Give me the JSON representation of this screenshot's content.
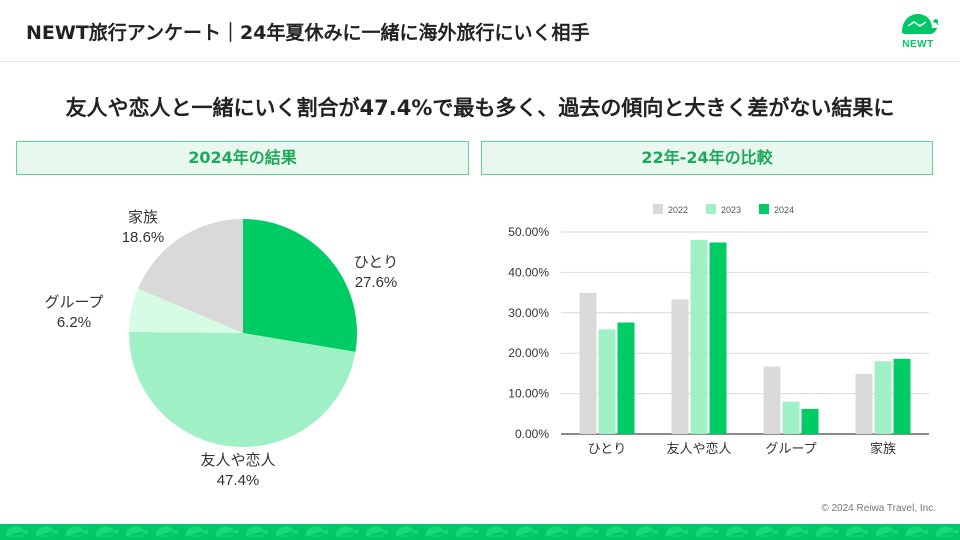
{
  "header": {
    "title": "NEWT旅行アンケート｜24年夏休みに一緒に海外旅行にいく相手",
    "logo_text": "NEWT"
  },
  "headline": "友人や恋人と一緒にいく割合が47.4%で最も多く、過去の傾向と大きく差がない結果に",
  "panels": {
    "left_title": "2024年の結果",
    "right_title": "22年-24年の比較"
  },
  "copyright": "© 2024 Reiwa Travel, Inc.",
  "colors": {
    "brand": "#00c767",
    "c2022": "#d9d9d9",
    "c2023": "#9ff0c4",
    "c2024": "#00cc66",
    "pie_hitori": "#00cc66",
    "pie_yujin": "#9ff0c4",
    "pie_group": "#d6fce6",
    "pie_kazoku": "#d9d9d9"
  },
  "chart_data": [
    {
      "type": "pie",
      "title": "",
      "slices": [
        {
          "label": "ひとり",
          "value": 27.6,
          "display": "27.6%",
          "color": "#00cc66"
        },
        {
          "label": "友人や恋人",
          "value": 47.4,
          "display": "47.4%",
          "color": "#9ff0c4"
        },
        {
          "label": "グループ",
          "value": 6.2,
          "display": "6.2%",
          "color": "#d6fce6"
        },
        {
          "label": "家族",
          "value": 18.6,
          "display": "18.6%",
          "color": "#d9d9d9"
        }
      ]
    },
    {
      "type": "bar",
      "title": "",
      "categories": [
        "ひとり",
        "友人や恋人",
        "グループ",
        "家族"
      ],
      "series": [
        {
          "name": "2022",
          "values": [
            34.9,
            33.3,
            16.7,
            14.9
          ],
          "color": "#d9d9d9"
        },
        {
          "name": "2023",
          "values": [
            25.9,
            48.0,
            8.0,
            18.0
          ],
          "color": "#9ff0c4"
        },
        {
          "name": "2024",
          "values": [
            27.6,
            47.4,
            6.2,
            18.6
          ],
          "color": "#00cc66"
        }
      ],
      "ylim": [
        0,
        50
      ],
      "yticks": [
        "0.00%",
        "10.00%",
        "20.00%",
        "30.00%",
        "40.00%",
        "50.00%"
      ],
      "ytick_values": [
        0,
        10,
        20,
        30,
        40,
        50
      ],
      "legend_position": "top",
      "grid": true
    }
  ]
}
